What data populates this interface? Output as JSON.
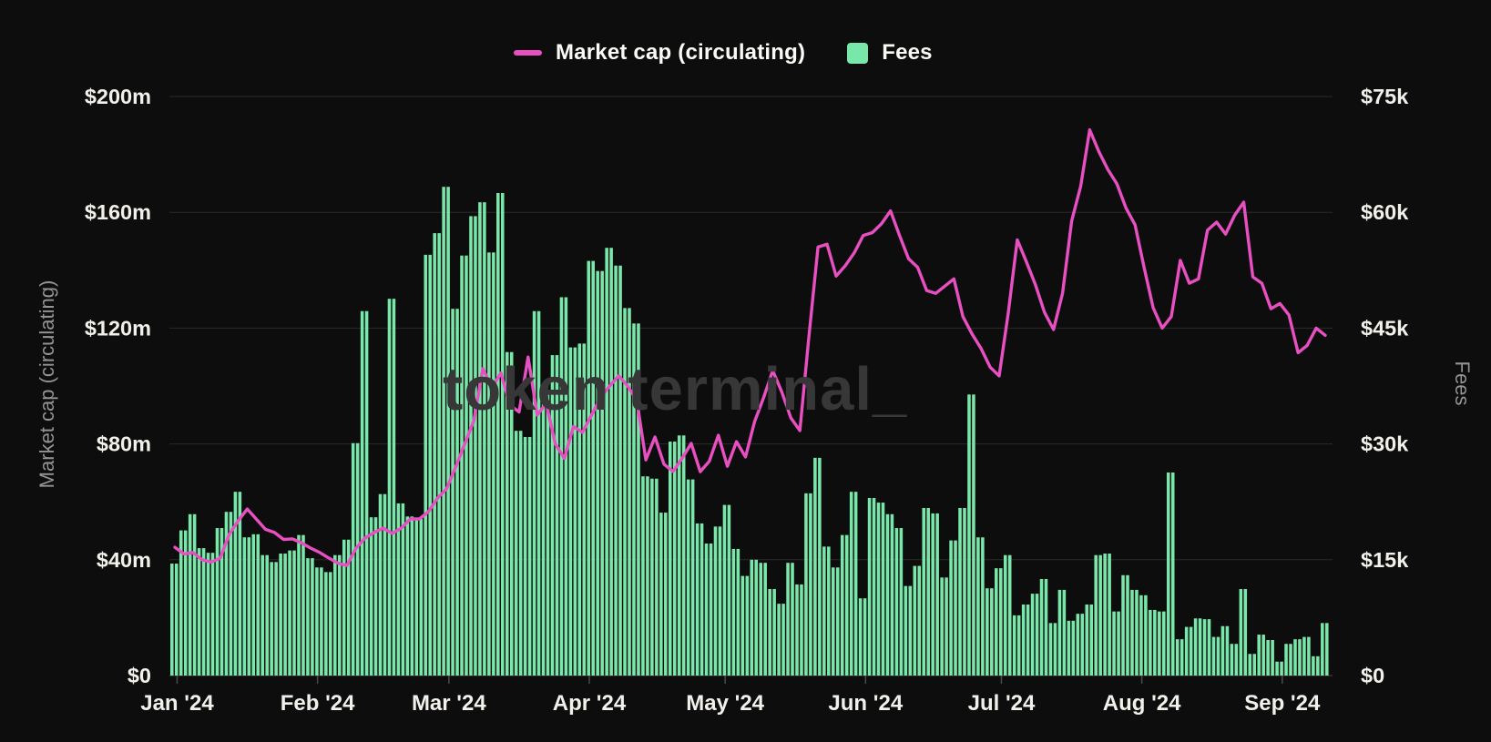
{
  "legend": {
    "market_cap_label": "Market cap (circulating)",
    "fees_label": "Fees"
  },
  "watermark": "token terminal_",
  "axes": {
    "left_title": "Market cap (circulating)",
    "right_title": "Fees",
    "left_tick_labels": [
      "$200m",
      "$160m",
      "$120m",
      "$80m",
      "$40m",
      "$0"
    ],
    "right_tick_labels": [
      "$75k",
      "$60k",
      "$45k",
      "$30k",
      "$15k",
      "$0"
    ],
    "x_tick_labels": [
      "Jan '24",
      "Feb '24",
      "Mar '24",
      "Apr '24",
      "May '24",
      "Jun '24",
      "Jul '24",
      "Aug '24",
      "Sep '24"
    ]
  },
  "colors": {
    "background": "#0d0d0d",
    "market_cap_line": "#e84fc0",
    "fees_bar": "#79e6aa",
    "grid": "#2b2b2b",
    "baseline": "#343434",
    "tick_mark": "#4a4a4a",
    "tick_text": "#f1f0ea",
    "muted_text": "#949494",
    "watermark_text": "#373737"
  },
  "chart_data": {
    "type": "dual-axis line + bar, daily time series",
    "title": "",
    "x_start": "Jan 2024",
    "x_end": "mid Sep 2024",
    "sample_step_days": 2,
    "grid": "horizontal only",
    "legend_position": "top center",
    "left_axis": {
      "label": "Market cap (circulating)",
      "min": 0,
      "max": 200,
      "tick_step": 40,
      "unit": "$m"
    },
    "right_axis": {
      "label": "Fees",
      "min": 0,
      "max": 75,
      "tick_step": 15,
      "unit": "$k"
    },
    "months": [
      {
        "label": "Jan '24",
        "day": 0
      },
      {
        "label": "Feb '24",
        "day": 31
      },
      {
        "label": "Mar '24",
        "day": 60
      },
      {
        "label": "Apr '24",
        "day": 91
      },
      {
        "label": "May '24",
        "day": 121
      },
      {
        "label": "Jun '24",
        "day": 152
      },
      {
        "label": "Jul '24",
        "day": 182
      },
      {
        "label": "Aug '24",
        "day": 213
      },
      {
        "label": "Sep '24",
        "day": 244
      }
    ],
    "series": [
      {
        "name": "Market cap (circulating)",
        "type": "line",
        "axis": "left",
        "unit": "$m",
        "values": [
          44.3,
          42,
          42.5,
          40,
          39.2,
          40.5,
          48.7,
          53.5,
          57.5,
          54,
          50.5,
          49.4,
          47,
          47.2,
          45.8,
          44,
          42.5,
          40.6,
          38.8,
          38,
          44,
          47.5,
          49.4,
          50.9,
          49.1,
          50.9,
          54.1,
          54.1,
          56.6,
          61.3,
          64.5,
          72,
          80,
          88,
          106,
          99.5,
          104.5,
          93.5,
          91,
          110,
          90,
          94,
          80,
          75,
          86,
          84,
          90,
          96,
          100,
          103.5,
          100,
          95,
          74.5,
          82.4,
          73,
          70.5,
          75,
          80.2,
          70.4,
          74,
          83,
          72.3,
          80.8,
          75.5,
          87.7,
          96,
          105.3,
          98,
          89,
          84.6,
          117,
          148,
          149,
          138,
          141.5,
          146,
          152,
          153,
          156,
          160.5,
          152,
          144,
          141,
          133,
          132,
          134.5,
          137,
          124,
          118,
          113,
          106.5,
          103.5,
          125,
          150.5,
          143,
          135,
          125.5,
          119.5,
          132,
          157,
          169,
          188.5,
          181,
          174.8,
          169.8,
          161.5,
          155.7,
          141,
          127,
          120,
          124,
          143.4,
          135.5,
          137,
          153.8,
          156.6,
          152.5,
          159,
          163.5,
          137.7,
          135.5,
          126.7,
          128.5,
          124.5,
          111.5,
          114,
          120,
          117.5
        ]
      },
      {
        "name": "Fees",
        "type": "bar",
        "axis": "right",
        "unit": "$k",
        "values": [
          14.5,
          18.8,
          20.9,
          16.5,
          15.9,
          19.1,
          21.2,
          23.8,
          17.9,
          18.3,
          15.6,
          14.7,
          15.8,
          16.2,
          18.2,
          15.2,
          14,
          13.4,
          15.6,
          17.6,
          30.1,
          47.2,
          20.5,
          23.5,
          48.8,
          22.3,
          20.6,
          20.3,
          54.5,
          57.3,
          63.3,
          47.5,
          54.4,
          59.5,
          61.3,
          54.8,
          62.5,
          41.9,
          31.7,
          30.9,
          47.2,
          36.4,
          41.5,
          49,
          42.5,
          43,
          53.7,
          52.4,
          55.4,
          53.1,
          47.6,
          45.6,
          25.8,
          25.5,
          21.1,
          30.3,
          31.1,
          25.4,
          19.7,
          17.1,
          19.3,
          22.1,
          16.4,
          12.9,
          15,
          14.6,
          11.2,
          9.3,
          14.6,
          11.8,
          23.6,
          28.2,
          16.7,
          14,
          18.2,
          23.8,
          10,
          23,
          22.4,
          20.9,
          19.1,
          11.6,
          14.2,
          21.7,
          21,
          12.7,
          17.5,
          21.7,
          36.4,
          17.9,
          11.3,
          13.9,
          15.6,
          7.8,
          9.2,
          10.6,
          12.5,
          6.8,
          11.1,
          7.1,
          8,
          9.2,
          15.6,
          15.8,
          8.3,
          13,
          11.1,
          10.4,
          8.5,
          8.3,
          26.3,
          4.7,
          6.3,
          7.4,
          7.3,
          5,
          6.4,
          4.1,
          11.2,
          2.8,
          5.3,
          4.6,
          1.8,
          4.1,
          4.7,
          5,
          2.5,
          6.8
        ]
      }
    ]
  }
}
